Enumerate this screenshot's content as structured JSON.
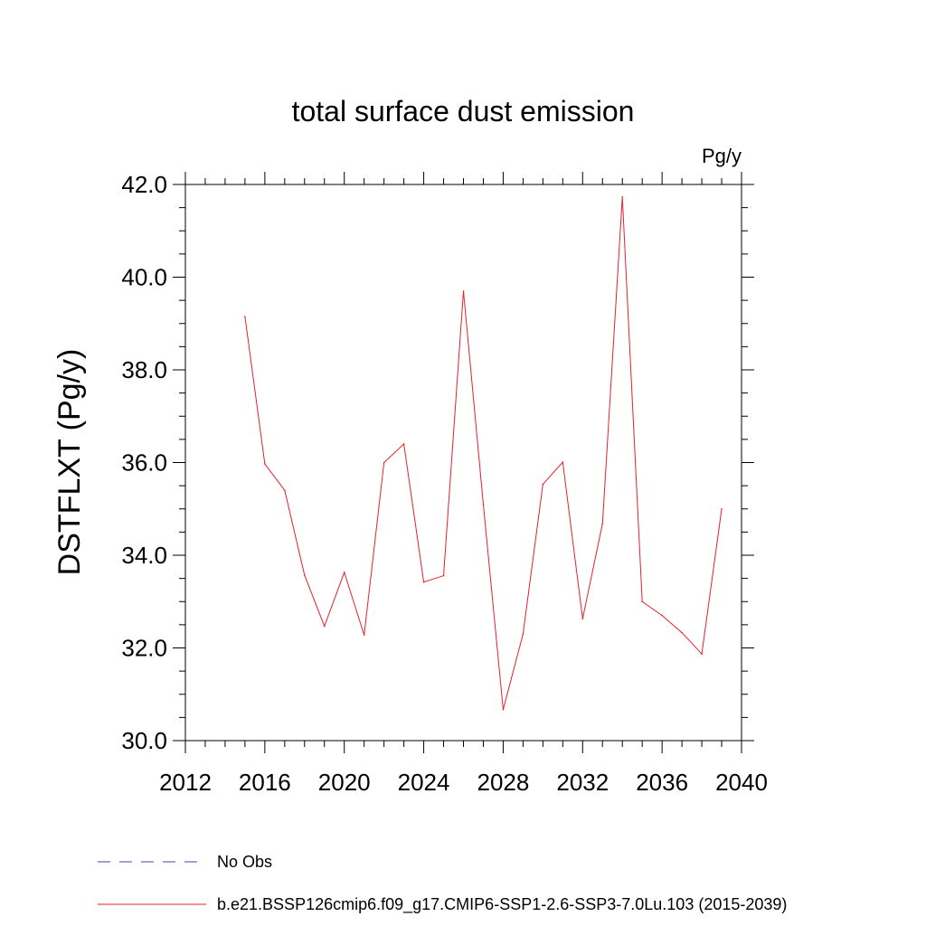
{
  "chart_data": {
    "type": "line",
    "title": "total surface dust emission",
    "units_label": "Pg/y",
    "ylabel": "DSTFLXT  (Pg/y)",
    "xlabel": "",
    "xlim": [
      2012,
      2040
    ],
    "ylim": [
      30.0,
      42.0
    ],
    "x_ticks": [
      2012,
      2016,
      2020,
      2024,
      2028,
      2032,
      2036,
      2040
    ],
    "x_tick_labels": [
      "2012",
      "2016",
      "2020",
      "2024",
      "2028",
      "2032",
      "2036",
      "2040"
    ],
    "y_ticks": [
      30,
      32,
      34,
      36,
      38,
      40,
      42
    ],
    "y_tick_labels": [
      "30.0",
      "32.0",
      "34.0",
      "36.0",
      "38.0",
      "40.0",
      "42.0"
    ],
    "grid": false,
    "series": [
      {
        "name": "b.e21.BSSP126cmip6.f09_g17.CMIP6-SSP1-2.6-SSP3-7.0Lu.103 (2015-2039)",
        "color": "#e8202a",
        "x": [
          2015,
          2016,
          2017,
          2018,
          2019,
          2020,
          2021,
          2022,
          2023,
          2024,
          2025,
          2026,
          2027,
          2028,
          2029,
          2030,
          2031,
          2032,
          2033,
          2034,
          2035,
          2036,
          2037,
          2038,
          2039
        ],
        "values": [
          39.15,
          35.97,
          35.4,
          33.57,
          32.47,
          33.63,
          32.28,
          36.0,
          36.4,
          33.42,
          33.56,
          39.7,
          35.1,
          30.67,
          32.3,
          35.53,
          36.01,
          32.63,
          34.68,
          41.73,
          33.0,
          32.7,
          32.33,
          31.87,
          35.0
        ]
      }
    ],
    "legend": [
      {
        "label": "No Obs",
        "style": "dashed",
        "color": "#4b3fa6"
      },
      {
        "label": "b.e21.BSSP126cmip6.f09_g17.CMIP6-SSP1-2.6-SSP3-7.0Lu.103 (2015-2039)",
        "style": "solid",
        "color": "#e8202a"
      }
    ],
    "legend_position": "bottom-left"
  }
}
